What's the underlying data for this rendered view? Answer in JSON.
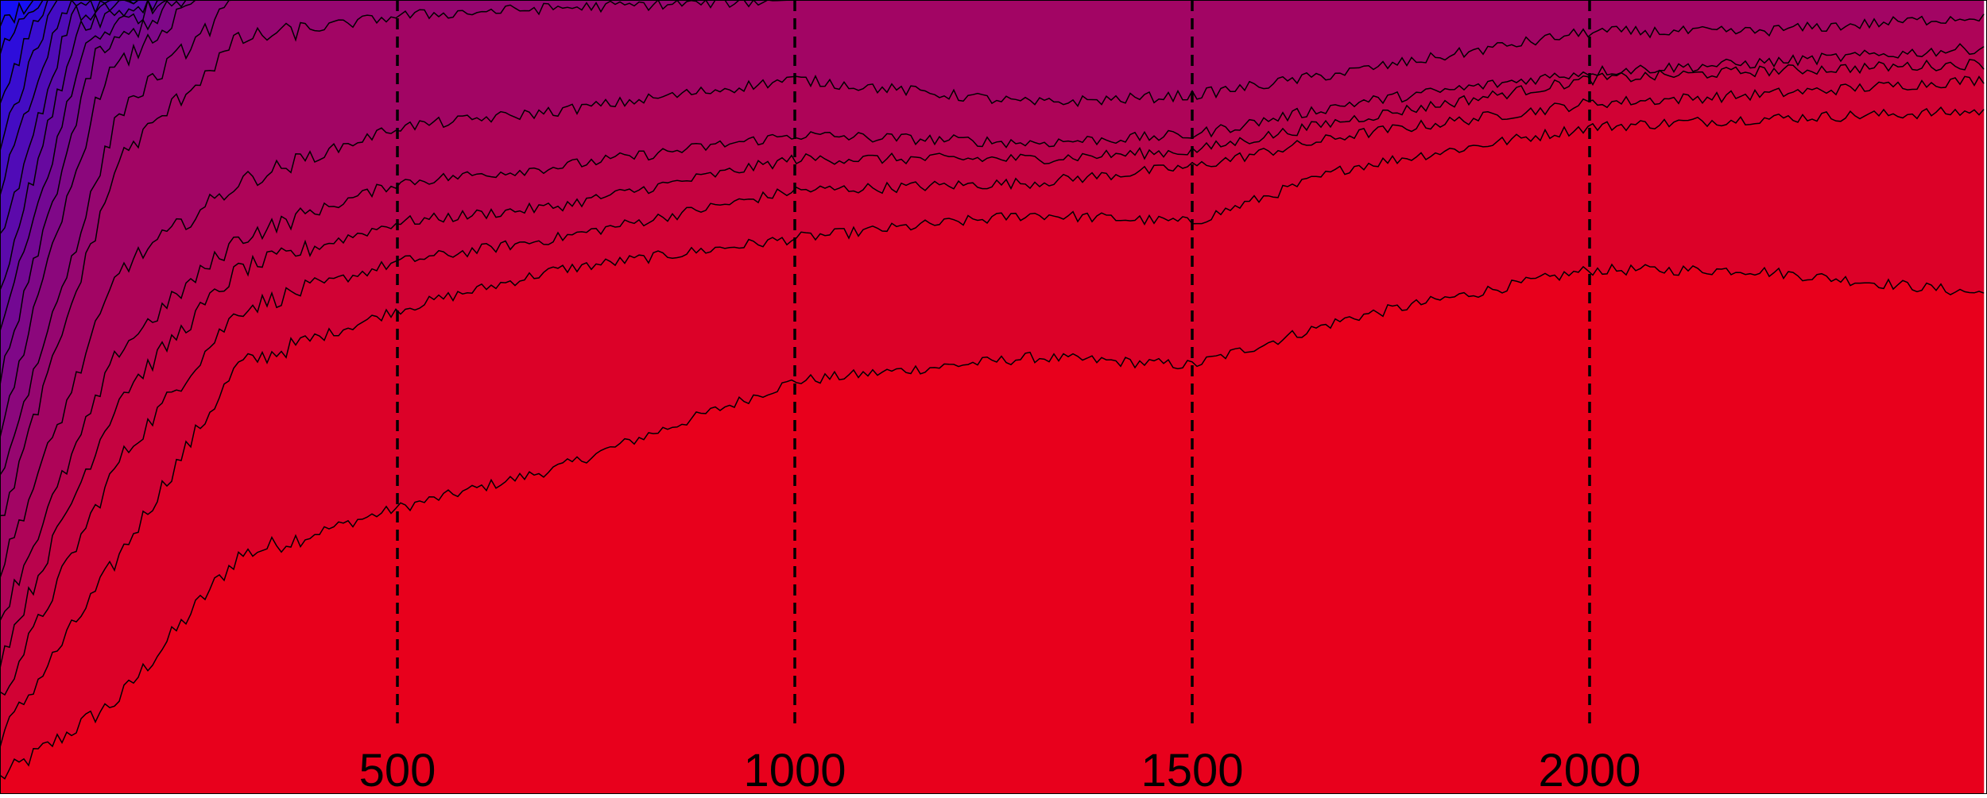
{
  "chart_data": {
    "type": "area",
    "stacked": true,
    "normalized": true,
    "title": "",
    "xlabel": "",
    "ylabel": "",
    "xlim": [
      0,
      2500
    ],
    "ylim": [
      0,
      1
    ],
    "grid": false,
    "x_ticks": [
      500,
      1000,
      1500,
      2000
    ],
    "x_tick_labels": [
      "500",
      "1000",
      "1500",
      "2000"
    ],
    "vertical_reference_lines": [
      500,
      1000,
      1500,
      2000
    ],
    "color_low": "#e8001c",
    "color_high": "#0a10ff",
    "boundaries": [
      {
        "x": [
          0,
          150,
          300,
          500,
          700,
          1000,
          1300,
          1500,
          1700,
          2000,
          2200,
          2500
        ],
        "y": [
          0.02,
          0.12,
          0.3,
          0.36,
          0.41,
          0.52,
          0.55,
          0.54,
          0.6,
          0.66,
          0.66,
          0.63
        ]
      },
      {
        "x": [
          0,
          150,
          300,
          500,
          700,
          1000,
          1300,
          1500,
          1700,
          2000,
          2200,
          2500
        ],
        "y": [
          0.07,
          0.3,
          0.54,
          0.61,
          0.66,
          0.7,
          0.73,
          0.72,
          0.79,
          0.84,
          0.85,
          0.86
        ]
      },
      {
        "x": [
          0,
          150,
          300,
          500,
          700,
          1000,
          1300,
          1500,
          1700,
          2000,
          2200,
          2500
        ],
        "y": [
          0.12,
          0.42,
          0.61,
          0.67,
          0.7,
          0.76,
          0.77,
          0.79,
          0.83,
          0.87,
          0.88,
          0.9
        ]
      },
      {
        "x": [
          0,
          150,
          300,
          500,
          700,
          1000,
          1300,
          1500,
          1700,
          2000,
          2200,
          2500
        ],
        "y": [
          0.17,
          0.5,
          0.66,
          0.72,
          0.74,
          0.8,
          0.8,
          0.81,
          0.85,
          0.9,
          0.91,
          0.92
        ]
      },
      {
        "x": [
          0,
          150,
          300,
          500,
          700,
          1000,
          1300,
          1500,
          1700,
          2000,
          2200,
          2500
        ],
        "y": [
          0.22,
          0.56,
          0.7,
          0.77,
          0.79,
          0.83,
          0.82,
          0.83,
          0.87,
          0.91,
          0.92,
          0.94
        ]
      },
      {
        "x": [
          0,
          150,
          300,
          500,
          700,
          1000,
          1300,
          1500,
          1700,
          2000,
          2200,
          2500
        ],
        "y": [
          0.28,
          0.66,
          0.77,
          0.84,
          0.86,
          0.9,
          0.87,
          0.88,
          0.91,
          0.96,
          0.96,
          0.98
        ]
      },
      {
        "x": [
          0,
          150,
          300,
          500,
          700,
          1000,
          1300,
          1500,
          1700,
          1900,
          2100,
          2500
        ],
        "y": [
          0.34,
          0.8,
          0.95,
          0.98,
          0.99,
          1.0,
          1.0,
          1.0,
          1.0,
          1.0,
          1.0,
          1.0
        ]
      },
      {
        "x": [
          0,
          150,
          300,
          500,
          2500
        ],
        "y": [
          0.4,
          0.86,
          1.0,
          1.0,
          1.0
        ]
      },
      {
        "x": [
          0,
          130,
          250,
          500,
          2500
        ],
        "y": [
          0.46,
          0.9,
          1.0,
          1.0,
          1.0
        ]
      },
      {
        "x": [
          0,
          120,
          230,
          500,
          2500
        ],
        "y": [
          0.52,
          0.93,
          1.0,
          1.0,
          1.0
        ]
      },
      {
        "x": [
          0,
          110,
          210,
          500,
          2500
        ],
        "y": [
          0.58,
          0.95,
          1.0,
          1.0,
          1.0
        ]
      },
      {
        "x": [
          0,
          100,
          200,
          500,
          2500
        ],
        "y": [
          0.64,
          0.97,
          1.0,
          1.0,
          1.0
        ]
      },
      {
        "x": [
          0,
          90,
          190,
          500,
          2500
        ],
        "y": [
          0.7,
          0.98,
          1.0,
          1.0,
          1.0
        ]
      },
      {
        "x": [
          0,
          80,
          180,
          500,
          2500
        ],
        "y": [
          0.76,
          0.99,
          1.0,
          1.0,
          1.0
        ]
      },
      {
        "x": [
          0,
          70,
          170,
          500,
          2500
        ],
        "y": [
          0.82,
          1.0,
          1.0,
          1.0,
          1.0
        ]
      },
      {
        "x": [
          0,
          60,
          160,
          500,
          2500
        ],
        "y": [
          0.88,
          1.0,
          1.0,
          1.0,
          1.0
        ]
      },
      {
        "x": [
          0,
          50,
          150,
          500,
          2500
        ],
        "y": [
          0.94,
          1.0,
          1.0,
          1.0,
          1.0
        ]
      },
      {
        "x": [
          0,
          40,
          140,
          500,
          2500
        ],
        "y": [
          0.97,
          1.0,
          1.0,
          1.0,
          1.0
        ]
      },
      {
        "x": [
          0,
          2500
        ],
        "y": [
          1.0,
          1.0
        ]
      }
    ]
  }
}
